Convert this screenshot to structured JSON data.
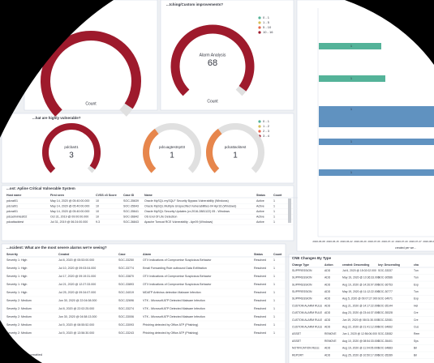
{
  "top_left_gauge": {
    "label": "Count"
  },
  "top_gauge": {
    "title": "...tching/Custom improvements?",
    "name": "Alarm Analysis",
    "value": "68",
    "label": "Count",
    "legend": [
      "0 - 1",
      "1 - 5",
      "5 - 10",
      "10 - 16"
    ]
  },
  "vuln_gauges": {
    "title": "...hat are highly vulnerable?",
    "legend": [
      "0 - 1",
      "1 - 2",
      "2 - 3",
      "3 - 4"
    ],
    "gauges": [
      {
        "name": "pdcba01",
        "value": "3"
      },
      {
        "name": "pdcuagtestnp03",
        "value": "1"
      },
      {
        "name": "pdcattacktest",
        "value": "1"
      }
    ]
  },
  "vuln_table": {
    "title": "...ost: Apline Critical Vulnerable System",
    "columns": [
      "Host name",
      "First seen",
      "CVSS v3 Score",
      "Case ID",
      "Name",
      "Status",
      "Count"
    ],
    "rows": [
      [
        "pdcrat01",
        "May 14, 2020 @ 05:40:00.000",
        "10",
        "SOC-35639",
        "Oracle MySQL mySQLF Security Bypass Vulnerability (Windows)",
        "Active",
        "1"
      ],
      [
        "pdcrat01",
        "May 14, 2020 @ 05:40:00.000",
        "10",
        "SOC-35643",
        "Oracle MySQL Multiple Unspecified Vulnerabilities-04 Apr16 (Windows)",
        "Active",
        "1"
      ],
      [
        "pdcrat01",
        "May 14, 2020 @ 05:40:00.000",
        "10",
        "SOC-35641",
        "Oracle MySQL Security Updates (cr-2016-2881122) 05 - Windows",
        "Active",
        "1"
      ],
      [
        "pdcadmintest02",
        "Oct 31, 2019 @ 09:00:00.000",
        "10",
        "SOC-36842",
        "OS End Of Life Detection",
        "Active",
        "1"
      ],
      [
        "pdcattacktest",
        "Jul 31, 2019 @ 06:24:00.000",
        "9.3",
        "SOC-36843",
        "Apache Tomcat RCE Vulnerability - Apr09 (Windows)",
        "Active",
        "1"
      ]
    ]
  },
  "alarm_table": {
    "title": "...ncident: What are the most severe alarms we're seeing?",
    "columns": [
      "Severity",
      "Created",
      "Case",
      "Alarm",
      "Status",
      "Count"
    ],
    "rows": [
      [
        "Severity 1: High",
        "Jul 8, 2020 @ 05:53:00.000",
        "SOC-33250",
        "OTX Indications of Compromise Suspicious Behavior",
        "Resolved",
        "1"
      ],
      [
        "Severity 1: High",
        "Jul 10, 2020 @ 09:03:04.000",
        "SOC-33774",
        "Email Forwarding Rule outbound Data Exfiltration",
        "Resolved",
        "1"
      ],
      [
        "Severity 1: High",
        "Jul 17, 2020 @ 09:19:31.000",
        "SOC-33870",
        "OTX Indications of Compromise Suspicious Behavior",
        "Resolved",
        "1"
      ],
      [
        "Severity 1: High",
        "Jul 21, 2020 @ 12:27:33.000",
        "SOC-33893",
        "OTX Indications of Compromise Suspicious Behavior",
        "Resolved",
        "1"
      ],
      [
        "Severity 1: High",
        "Jul 25, 2020 @ 09:34:07.000",
        "SOC-34019",
        "MDATP Antivirus detection Malware Infection",
        "Resolved",
        "1"
      ],
      [
        "Severity 2: Medium",
        "Jun 30, 2020 @ 22:04:08.000",
        "SOC-32696",
        "VTK - Microsoft ATP Detected Malware Infection",
        "Resolved",
        "1"
      ],
      [
        "Severity 2: Medium",
        "Jul 8, 2020 @ 22:02:25.000",
        "SOC-33274",
        "VTK - Microsoft ATP Detected Malware Infection",
        "Resolved",
        "1"
      ],
      [
        "Severity 2: Medium",
        "Jun 30, 2020 @ 04:58:13.000",
        "SOC-33006",
        "VTK - Microsoft ATP Detected Malware Infection",
        "Resolved",
        "1"
      ],
      [
        "Severity 2: Medium",
        "Jul 5, 2020 @ 08:55:52.000",
        "SOC-33093",
        "Phishing detected by Office ATP (Phishing)",
        "Resolved",
        "1"
      ],
      [
        "Severity 2: Medium",
        "Jul 5, 2020 @ 13:56:30.000",
        "SOC-33243",
        "Phishing detected by Office ATP (Phishing)",
        "Resolved",
        "1"
      ]
    ],
    "export": "Export: Formatted"
  },
  "cne_table": {
    "title": "CNE Changes By Type",
    "columns": [
      "Change Type",
      "Action",
      "created: Descending",
      "key: Descending",
      "cha"
    ],
    "rows": [
      [
        "SUPPRESSION",
        "ADD",
        "Jul 6, 2020 @ 15:02:02.000",
        "SOC-33337",
        "Tun"
      ],
      [
        "SUPPRESSION",
        "ADD",
        "May 19, 2020 @ 10:36:33.000",
        "SOC-30586",
        "Tun"
      ],
      [
        "SUPPRESSION",
        "ADD",
        "Aug 10, 2020 @ 14:26:07.000",
        "SOC-36753",
        "Exp"
      ],
      [
        "SUPPRESSION",
        "ADD",
        "May 19, 2020 @ 11:12:22.000",
        "SOC-30777",
        "Tun"
      ],
      [
        "SUPPRESSION",
        "ADD",
        "Aug 5, 2020 @ 09:07:27.000",
        "SOC-34971",
        "Exp"
      ],
      [
        "CUSTOM ALARM RULE",
        "ADD",
        "Aug 21, 2020 @ 14:17:22.000",
        "SOC-35144",
        "Hel"
      ],
      [
        "CUSTOM ALARM RULE",
        "ADD",
        "Aug 23, 2020 @ 23:44:37.000",
        "SOC-35328",
        "Cre"
      ],
      [
        "CUSTOM ALARM RULE",
        "ADD",
        "Jun 19, 2020 @ 08:01:30.000",
        "SOC-32081",
        "Cre"
      ],
      [
        "CUSTOM ALARM RULE",
        "ADD",
        "Aug 22, 2020 @ 21:41:12.000",
        "SOC-34662",
        "Cus"
      ],
      [
        "ASSET",
        "REMOVE",
        "Jun 1, 2020 @ 12:56:06.000",
        "SOC-33082",
        "Rem"
      ],
      [
        "ASSET",
        "REMOVE",
        "Aug 10, 2020 @ 08:54:33.000",
        "SOC-35401",
        "Sys"
      ],
      [
        "NOTIFICATION RULE",
        "ADD",
        "Aug 19, 2020 @ 11:04:05.000",
        "SOC-34883",
        "Bri"
      ],
      [
        "REPORT",
        "ADD",
        "Aug 25, 2020 @ 10:50:17.000",
        "SOC-35289",
        "Bri"
      ]
    ]
  },
  "bar_panel": {
    "bar_labels": [
      "1",
      "1",
      "1",
      "1",
      "1"
    ],
    "dates": [
      "2020-06-08",
      "2020-06-15",
      "2020-06-22",
      "2020-06-29",
      "2020-07-06",
      "2020-07-13",
      "2020-07-20",
      "2020-07-27",
      "2020-08-03",
      "2020-08-10"
    ],
    "axis_label": "created per we..."
  }
}
